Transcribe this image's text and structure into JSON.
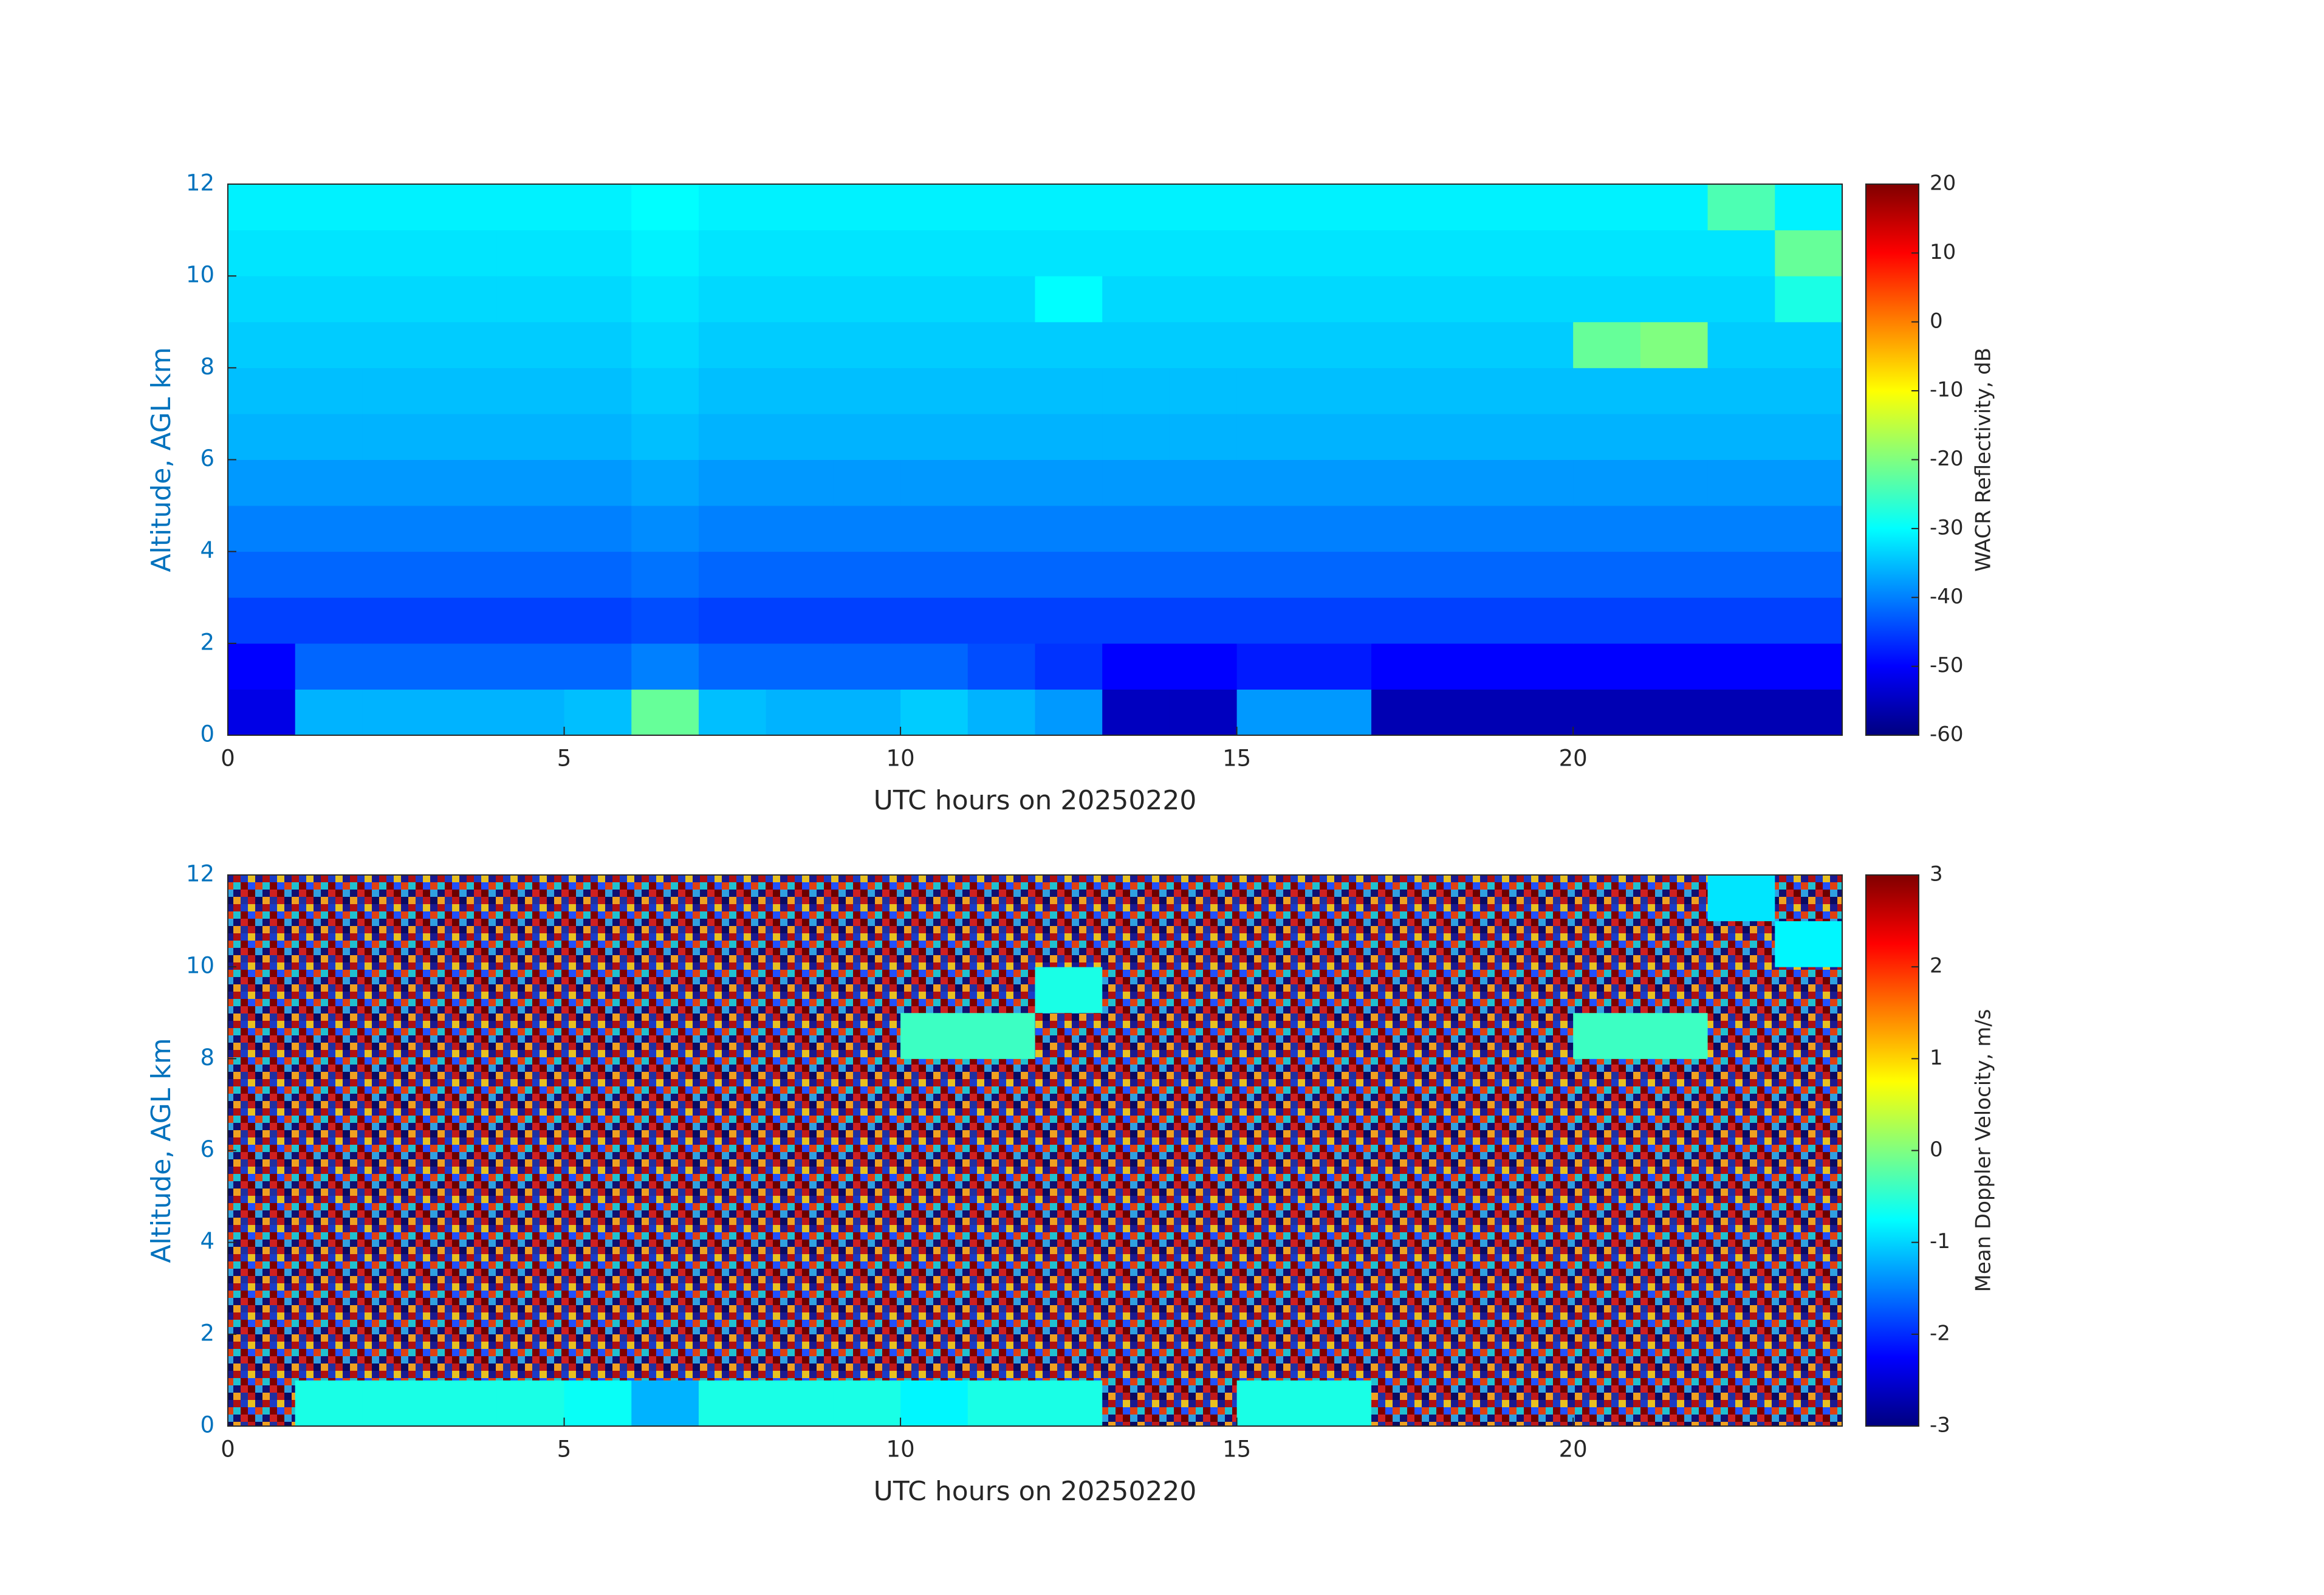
{
  "chart_data": [
    {
      "type": "heatmap",
      "colormap": "jet",
      "xlabel": "UTC hours on 20250220",
      "ylabel": "Altitude, AGL km",
      "colorbar_label": "WACR Reflectivity, dB",
      "xlim": [
        0,
        24
      ],
      "xticks": [
        0,
        5,
        10,
        15,
        20
      ],
      "ylim": [
        0,
        12
      ],
      "yticks": [
        0,
        2,
        4,
        6,
        8,
        10,
        12
      ],
      "clim": [
        -60,
        20
      ],
      "cticks": [
        -60,
        -50,
        -40,
        -30,
        -20,
        -10,
        0,
        10,
        20
      ],
      "x": [
        0.5,
        1.5,
        2.5,
        3.5,
        4.5,
        5.5,
        6.5,
        7.5,
        8.5,
        9.5,
        10.5,
        11.5,
        12.5,
        13.5,
        14.5,
        15.5,
        16.5,
        17.5,
        18.5,
        19.5,
        20.5,
        21.5,
        22.5,
        23.5
      ],
      "y": [
        0.5,
        1.5,
        2.5,
        3.5,
        4.5,
        5.5,
        6.5,
        7.5,
        8.5,
        9.5,
        10.5,
        11.5
      ],
      "z": [
        [
          -52,
          -36,
          -36,
          -36,
          -36,
          -35,
          -22,
          -35,
          -36,
          -36,
          -34,
          -36,
          -38,
          -55,
          -55,
          -38,
          -38,
          -56,
          -56,
          -56,
          -56,
          -56,
          -56,
          -56
        ],
        [
          -50,
          -42,
          -42,
          -42,
          -42,
          -42,
          -40,
          -42,
          -42,
          -42,
          -42,
          -44,
          -46,
          -50,
          -50,
          -48,
          -48,
          -50,
          -50,
          -50,
          -50,
          -50,
          -50,
          -50
        ],
        [
          -45,
          -45,
          -45,
          -45,
          -45,
          -45,
          -44,
          -45,
          -45,
          -45,
          -45,
          -45,
          -45,
          -45,
          -45,
          -45,
          -45,
          -45,
          -45,
          -45,
          -45,
          -45,
          -45,
          -45
        ],
        [
          -42,
          -42,
          -42,
          -42,
          -42,
          -42,
          -41,
          -42,
          -42,
          -42,
          -42,
          -42,
          -42,
          -42,
          -42,
          -42,
          -42,
          -42,
          -42,
          -42,
          -42,
          -42,
          -42,
          -42
        ],
        [
          -40,
          -40,
          -40,
          -40,
          -40,
          -40,
          -39,
          -40,
          -40,
          -40,
          -40,
          -40,
          -40,
          -40,
          -40,
          -40,
          -40,
          -40,
          -40,
          -40,
          -40,
          -40,
          -40,
          -40
        ],
        [
          -38,
          -38,
          -38,
          -38,
          -38,
          -38,
          -37,
          -38,
          -38,
          -38,
          -38,
          -38,
          -38,
          -38,
          -38,
          -38,
          -38,
          -38,
          -38,
          -38,
          -38,
          -38,
          -38,
          -38
        ],
        [
          -36,
          -36,
          -36,
          -36,
          -36,
          -36,
          -35,
          -36,
          -36,
          -36,
          -36,
          -36,
          -36,
          -36,
          -36,
          -36,
          -36,
          -36,
          -36,
          -36,
          -36,
          -36,
          -36,
          -36
        ],
        [
          -35,
          -35,
          -35,
          -35,
          -35,
          -35,
          -34,
          -35,
          -35,
          -35,
          -35,
          -35,
          -35,
          -35,
          -35,
          -35,
          -35,
          -35,
          -35,
          -35,
          -35,
          -35,
          -35,
          -35
        ],
        [
          -34,
          -34,
          -34,
          -34,
          -34,
          -34,
          -33,
          -34,
          -34,
          -34,
          -34,
          -34,
          -34,
          -34,
          -34,
          -34,
          -34,
          -34,
          -34,
          -34,
          -22,
          -20,
          -34,
          -34
        ],
        [
          -33,
          -33,
          -33,
          -33,
          -33,
          -33,
          -32,
          -33,
          -33,
          -33,
          -33,
          -33,
          -30,
          -33,
          -33,
          -33,
          -33,
          -33,
          -33,
          -33,
          -33,
          -33,
          -33,
          -28
        ],
        [
          -32,
          -32,
          -32,
          -32,
          -32,
          -32,
          -31,
          -32,
          -32,
          -32,
          -32,
          -32,
          -32,
          -32,
          -32,
          -32,
          -32,
          -32,
          -32,
          -32,
          -32,
          -32,
          -32,
          -22
        ],
        [
          -31,
          -31,
          -31,
          -31,
          -31,
          -31,
          -30,
          -31,
          -31,
          -31,
          -31,
          -31,
          -31,
          -31,
          -31,
          -31,
          -31,
          -31,
          -31,
          -31,
          -31,
          -31,
          -24,
          -31
        ]
      ]
    },
    {
      "type": "heatmap",
      "colormap": "jet",
      "xlabel": "UTC hours on 20250220",
      "ylabel": "Altitude, AGL km",
      "colorbar_label": "Mean Doppler Velocity, m/s",
      "xlim": [
        0,
        24
      ],
      "xticks": [
        0,
        5,
        10,
        15,
        20
      ],
      "ylim": [
        0,
        12
      ],
      "yticks": [
        0,
        2,
        4,
        6,
        8,
        10,
        12
      ],
      "clim": [
        -3,
        3
      ],
      "cticks": [
        -3,
        -2,
        -1,
        0,
        1,
        2,
        3
      ],
      "x": [
        0.5,
        1.5,
        2.5,
        3.5,
        4.5,
        5.5,
        6.5,
        7.5,
        8.5,
        9.5,
        10.5,
        11.5,
        12.5,
        13.5,
        14.5,
        15.5,
        16.5,
        17.5,
        18.5,
        19.5,
        20.5,
        21.5,
        22.5,
        23.5
      ],
      "y": [
        0.5,
        1.5,
        2.5,
        3.5,
        4.5,
        5.5,
        6.5,
        7.5,
        8.5,
        9.5,
        10.5,
        11.5
      ],
      "z": [
        [
          null,
          -0.6,
          -0.6,
          -0.6,
          -0.6,
          -0.7,
          -1.2,
          -0.6,
          -0.6,
          -0.6,
          -0.8,
          -0.6,
          -0.6,
          null,
          null,
          -0.6,
          -0.6,
          null,
          null,
          null,
          null,
          null,
          null,
          null
        ],
        [
          null,
          null,
          null,
          null,
          null,
          null,
          null,
          null,
          null,
          null,
          null,
          null,
          null,
          null,
          null,
          null,
          null,
          null,
          null,
          null,
          null,
          null,
          null,
          null
        ],
        [
          null,
          null,
          null,
          null,
          null,
          null,
          null,
          null,
          null,
          null,
          null,
          null,
          null,
          null,
          null,
          null,
          null,
          null,
          null,
          null,
          null,
          null,
          null,
          null
        ],
        [
          null,
          null,
          null,
          null,
          null,
          null,
          null,
          null,
          null,
          null,
          null,
          null,
          null,
          null,
          null,
          null,
          null,
          null,
          null,
          null,
          null,
          null,
          null,
          null
        ],
        [
          null,
          null,
          null,
          null,
          null,
          null,
          null,
          null,
          null,
          null,
          null,
          null,
          null,
          null,
          null,
          null,
          null,
          null,
          null,
          null,
          null,
          null,
          null,
          null
        ],
        [
          null,
          null,
          null,
          null,
          null,
          null,
          null,
          null,
          null,
          null,
          null,
          null,
          null,
          null,
          null,
          null,
          null,
          null,
          null,
          null,
          null,
          null,
          null,
          null
        ],
        [
          null,
          null,
          null,
          null,
          null,
          null,
          null,
          null,
          null,
          null,
          null,
          null,
          null,
          null,
          null,
          null,
          null,
          null,
          null,
          null,
          null,
          null,
          null,
          null
        ],
        [
          null,
          null,
          null,
          null,
          null,
          null,
          null,
          null,
          null,
          null,
          null,
          null,
          null,
          null,
          null,
          null,
          null,
          null,
          null,
          null,
          null,
          null,
          null,
          null
        ],
        [
          null,
          null,
          null,
          null,
          null,
          null,
          null,
          null,
          null,
          null,
          -0.4,
          -0.4,
          null,
          null,
          null,
          null,
          null,
          null,
          null,
          null,
          -0.4,
          -0.4,
          null,
          null
        ],
        [
          null,
          null,
          null,
          null,
          null,
          null,
          null,
          null,
          null,
          null,
          null,
          null,
          -0.6,
          null,
          null,
          null,
          null,
          null,
          null,
          null,
          null,
          null,
          null,
          null
        ],
        [
          null,
          null,
          null,
          null,
          null,
          null,
          null,
          null,
          null,
          null,
          null,
          null,
          null,
          null,
          null,
          null,
          null,
          null,
          null,
          null,
          null,
          null,
          null,
          -0.8
        ],
        [
          null,
          null,
          null,
          null,
          null,
          null,
          null,
          null,
          null,
          null,
          null,
          null,
          null,
          null,
          null,
          null,
          null,
          null,
          null,
          null,
          null,
          null,
          -0.9,
          null
        ]
      ]
    }
  ]
}
